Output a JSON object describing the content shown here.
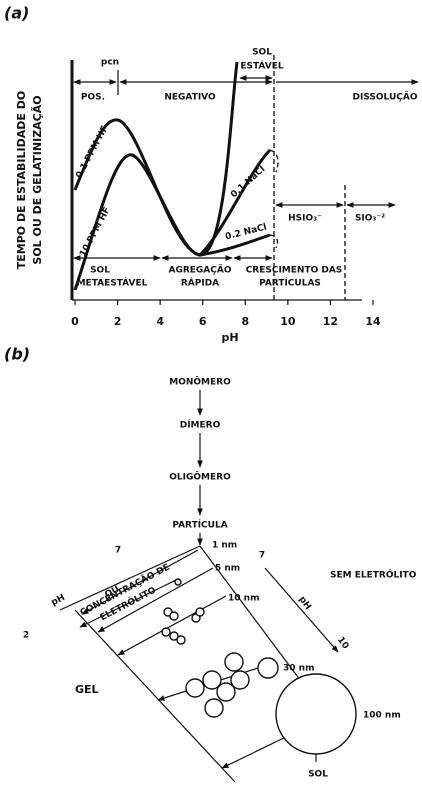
{
  "panel_a": {
    "label": "(a)",
    "y_label": [
      "TEMPO DE ESTABILIDADE DO",
      "SOL OU DE GELATINIZAÇÃO"
    ],
    "x_label": "pH",
    "xticks": [
      0,
      2,
      4,
      6,
      8,
      10,
      12,
      14
    ],
    "annotations": [
      "pcn",
      "POS.",
      "NEGATIVO",
      "SOL",
      "ESTÁVEL",
      "DISSOLUÇÃO",
      "0.1 PPM HF",
      "10 PPM HF",
      "0.1 NaCl",
      "0.2 NaCl",
      "HSIO₃⁻",
      "SIO₃⁻²",
      "SOL",
      "METAESTÁVEL",
      "AGREGAÇÃO",
      "RÁPIDA",
      "CRESCIMENTO DAS",
      "PARTÍCULAS"
    ]
  },
  "panel_b": {
    "label": "(b)",
    "chain": [
      "MONÔMERO",
      "DÍMERO",
      "OLIGÔMERO",
      "PARTÍCULA"
    ],
    "sizes": [
      "1 nm",
      "5 nm",
      "10 nm",
      "30 nm",
      "100 nm"
    ],
    "left": [
      "pH",
      "7",
      "2",
      "OU",
      "CONCENTRAÇÃO DE",
      "ELETRÓLITO"
    ],
    "right": [
      "SEM ELETRÓLITO",
      "7",
      "pH",
      "10"
    ],
    "gel": "GEL",
    "sol": "SOL"
  }
}
